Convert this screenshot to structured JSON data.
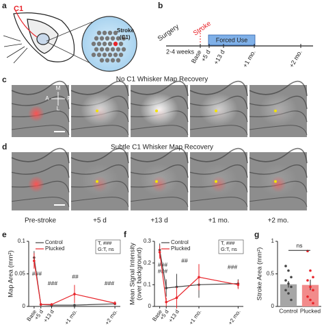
{
  "panels": {
    "a": {
      "label": "a",
      "whisker": "C1",
      "stroke": [
        "Stroke",
        "(C1)"
      ]
    },
    "b": {
      "label": "b",
      "surgery": "Surgery",
      "stroke": "Stroke",
      "forced_use": "Forced Use",
      "weeks": "2-4 weeks",
      "timepoints": [
        "Base",
        "+5 d",
        "+13 d",
        "+1 mo.",
        "+2 mo."
      ]
    },
    "c": {
      "label": "c",
      "title": "No C1 Whisker Map Recovery",
      "compass": [
        "M",
        "A",
        "P",
        "L"
      ]
    },
    "d": {
      "label": "d",
      "title": "Subtle C1 Whisker Map Recovery",
      "columns": [
        "Pre-stroke",
        "+5 d",
        "+13 d",
        "+1 mo.",
        "+2 mo."
      ]
    }
  },
  "chart_data": [
    {
      "type": "line",
      "panel": "e",
      "y_label": [
        "Map Area (mm²)"
      ],
      "x": [
        0,
        5,
        13,
        30,
        60
      ],
      "xlim": [
        -4,
        64
      ],
      "xticks": [
        {
          "value": 0,
          "label": "Base"
        },
        {
          "value": 5,
          "label": "+5 d"
        },
        {
          "value": 13,
          "label": "+13 d"
        },
        {
          "value": 30,
          "label": "+1 mo."
        },
        {
          "value": 60,
          "label": "+2 mo."
        }
      ],
      "ylim": [
        0,
        0.1
      ],
      "yticks": [
        0,
        0.05,
        0.1
      ],
      "series": [
        {
          "name": "Control",
          "color": "#444444",
          "values": [
            0.075,
            0.003,
            0.002,
            0.002,
            0.004
          ],
          "errors": [
            0.01,
            0.002,
            0.001,
            0.001,
            0.002
          ]
        },
        {
          "name": "Plucked",
          "color": "#e8242a",
          "values": [
            0.07,
            0.003,
            0.003,
            0.019,
            0.005
          ],
          "errors": [
            0.012,
            0.002,
            0.002,
            0.014,
            0.003
          ]
        }
      ],
      "stats": [
        "T, ###",
        "G:T, ns"
      ],
      "annotations": [
        "###",
        "###",
        "##",
        "###"
      ]
    },
    {
      "type": "line",
      "panel": "f",
      "y_label": [
        "Mean Signal Intensity",
        "(over background)"
      ],
      "x": [
        0,
        5,
        13,
        30,
        60
      ],
      "xlim": [
        -4,
        64
      ],
      "xticks": [
        {
          "value": 0,
          "label": "Base"
        },
        {
          "value": 5,
          "label": "+5 d"
        },
        {
          "value": 13,
          "label": "+13 d"
        },
        {
          "value": 30,
          "label": "+1 mo."
        },
        {
          "value": 60,
          "label": "+2 mo."
        }
      ],
      "ylim": [
        0,
        0.3
      ],
      "yticks": [
        0,
        0.1,
        0.2,
        0.3
      ],
      "series": [
        {
          "name": "Control",
          "color": "#444444",
          "values": [
            0.26,
            0.085,
            0.09,
            0.1,
            0.105
          ],
          "errors": [
            0.03,
            0.04,
            0.06,
            0.06,
            0.02
          ]
        },
        {
          "name": "Plucked",
          "color": "#e8242a",
          "values": [
            0.25,
            0.02,
            0.04,
            0.135,
            0.1
          ],
          "errors": [
            0.03,
            0.02,
            0.05,
            0.06,
            0.02
          ]
        }
      ],
      "stats": [
        "T, ###",
        "G:T, ns"
      ],
      "annotations": [
        "###",
        "###",
        "##",
        "###"
      ]
    },
    {
      "type": "bar",
      "panel": "g",
      "y_label": [
        "Stroke Area (mm²)"
      ],
      "categories": [
        "Control",
        "Plucked"
      ],
      "values": [
        0.34,
        0.33
      ],
      "errors": [
        0.05,
        0.08
      ],
      "colors": [
        "#a6a6a6",
        "#f28b8b"
      ],
      "point_colors": [
        "#444444",
        "#e8242a"
      ],
      "points": [
        [
          0.62,
          0.55,
          0.45,
          0.4,
          0.35,
          0.3,
          0.25,
          0.2,
          0.1
        ],
        [
          0.85,
          0.55,
          0.45,
          0.4,
          0.3,
          0.25,
          0.15,
          0.1,
          0.05
        ]
      ],
      "ylim": [
        0,
        1
      ],
      "yticks": [
        0,
        0.5,
        1
      ],
      "annotations": [
        "ns"
      ]
    }
  ]
}
